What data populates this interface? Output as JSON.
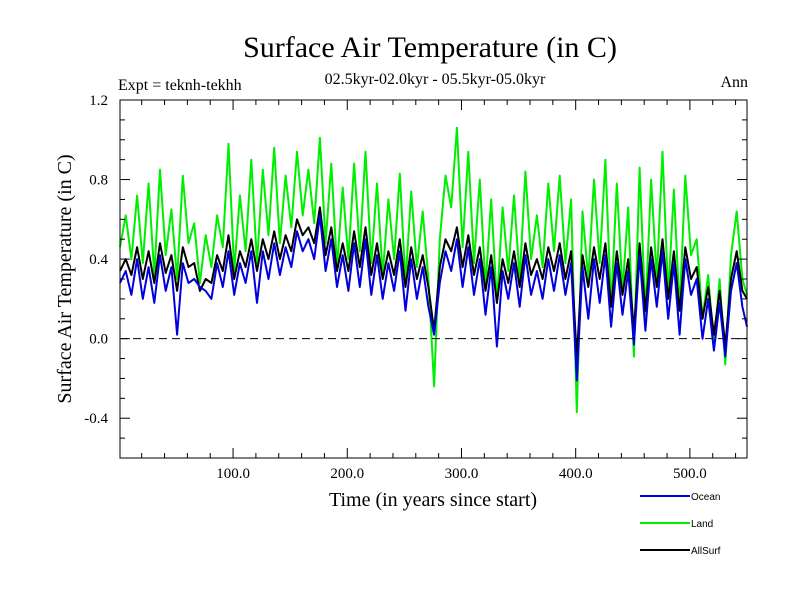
{
  "chart_data": {
    "type": "line",
    "title": "Surface Air Temperature (in C)",
    "subtitle": "02.5kyr-02.0kyr - 05.5kyr-05.0kyr",
    "left_label": "Expt = teknh-tekhh",
    "right_label": "Ann",
    "xlabel": "Time (in years since start)",
    "ylabel": "Surface Air Temperature (in C)",
    "xlim": [
      1,
      550
    ],
    "ylim": [
      -0.6,
      1.2
    ],
    "x_ticks": [
      {
        "value": 100,
        "label": "100.0"
      },
      {
        "value": 200,
        "label": "200.0"
      },
      {
        "value": 300,
        "label": "300.0"
      },
      {
        "value": 400,
        "label": "400.0"
      },
      {
        "value": 500,
        "label": "500.0"
      }
    ],
    "y_ticks": [
      {
        "value": 1.2,
        "label": "1.2"
      },
      {
        "value": 0.8,
        "label": "0.8"
      },
      {
        "value": 0.4,
        "label": "0.4"
      },
      {
        "value": 0.0,
        "label": "0.0"
      },
      {
        "value": -0.4,
        "label": "-0.4"
      }
    ],
    "zero_line": true,
    "legend_position": "bottom-right",
    "series": [
      {
        "name": "Land",
        "color": "#00ee00",
        "x": [
          1,
          6,
          11,
          16,
          21,
          26,
          31,
          36,
          41,
          46,
          51,
          56,
          61,
          66,
          71,
          76,
          81,
          86,
          91,
          96,
          101,
          106,
          111,
          116,
          121,
          126,
          131,
          136,
          141,
          146,
          151,
          156,
          161,
          166,
          171,
          176,
          181,
          186,
          191,
          196,
          201,
          206,
          211,
          216,
          221,
          226,
          231,
          236,
          241,
          246,
          251,
          256,
          261,
          266,
          271,
          276,
          281,
          286,
          291,
          296,
          301,
          306,
          311,
          316,
          321,
          326,
          331,
          336,
          341,
          346,
          351,
          356,
          361,
          366,
          371,
          376,
          381,
          386,
          391,
          396,
          401,
          406,
          411,
          416,
          421,
          426,
          431,
          436,
          441,
          446,
          451,
          456,
          461,
          466,
          471,
          476,
          481,
          486,
          491,
          496,
          501,
          506,
          511,
          516,
          521,
          526,
          531,
          536,
          541,
          546,
          550
        ],
        "values": [
          0.46,
          0.62,
          0.4,
          0.72,
          0.38,
          0.78,
          0.32,
          0.85,
          0.42,
          0.65,
          0.3,
          0.82,
          0.48,
          0.58,
          0.28,
          0.52,
          0.36,
          0.62,
          0.46,
          0.98,
          0.34,
          0.72,
          0.44,
          0.9,
          0.38,
          0.85,
          0.52,
          0.96,
          0.48,
          0.82,
          0.56,
          0.94,
          0.62,
          0.85,
          0.58,
          1.01,
          0.48,
          0.88,
          0.36,
          0.76,
          0.4,
          0.88,
          0.44,
          0.94,
          0.38,
          0.78,
          0.32,
          0.7,
          0.4,
          0.83,
          0.28,
          0.74,
          0.36,
          0.64,
          0.3,
          -0.24,
          0.5,
          0.82,
          0.66,
          1.06,
          0.46,
          0.94,
          0.38,
          0.8,
          0.26,
          0.7,
          0.18,
          0.66,
          0.34,
          0.72,
          0.3,
          0.84,
          0.4,
          0.62,
          0.36,
          0.78,
          0.44,
          0.82,
          0.38,
          0.7,
          -0.37,
          0.64,
          0.3,
          0.8,
          0.38,
          0.9,
          0.16,
          0.78,
          0.24,
          0.66,
          -0.09,
          0.86,
          0.12,
          0.8,
          0.3,
          0.94,
          0.22,
          0.75,
          0.14,
          0.82,
          0.42,
          0.5,
          0.1,
          0.32,
          -0.05,
          0.3,
          -0.13,
          0.42,
          0.64,
          0.3,
          0.22
        ]
      },
      {
        "name": "AllSurf",
        "color": "#000000",
        "x": [
          1,
          6,
          11,
          16,
          21,
          26,
          31,
          36,
          41,
          46,
          51,
          56,
          61,
          66,
          71,
          76,
          81,
          86,
          91,
          96,
          101,
          106,
          111,
          116,
          121,
          126,
          131,
          136,
          141,
          146,
          151,
          156,
          161,
          166,
          171,
          176,
          181,
          186,
          191,
          196,
          201,
          206,
          211,
          216,
          221,
          226,
          231,
          236,
          241,
          246,
          251,
          256,
          261,
          266,
          271,
          276,
          281,
          286,
          291,
          296,
          301,
          306,
          311,
          316,
          321,
          326,
          331,
          336,
          341,
          346,
          351,
          356,
          361,
          366,
          371,
          376,
          381,
          386,
          391,
          396,
          401,
          406,
          411,
          416,
          421,
          426,
          431,
          436,
          441,
          446,
          451,
          456,
          461,
          466,
          471,
          476,
          481,
          486,
          491,
          496,
          501,
          506,
          511,
          516,
          521,
          526,
          531,
          536,
          541,
          546,
          550
        ],
        "values": [
          0.34,
          0.4,
          0.32,
          0.46,
          0.3,
          0.44,
          0.28,
          0.48,
          0.33,
          0.42,
          0.24,
          0.46,
          0.36,
          0.38,
          0.24,
          0.3,
          0.28,
          0.42,
          0.34,
          0.52,
          0.3,
          0.44,
          0.36,
          0.5,
          0.34,
          0.5,
          0.4,
          0.54,
          0.4,
          0.52,
          0.44,
          0.6,
          0.52,
          0.56,
          0.48,
          0.66,
          0.42,
          0.56,
          0.34,
          0.48,
          0.34,
          0.54,
          0.36,
          0.56,
          0.32,
          0.48,
          0.3,
          0.44,
          0.32,
          0.5,
          0.26,
          0.46,
          0.3,
          0.42,
          0.26,
          0.04,
          0.36,
          0.5,
          0.44,
          0.56,
          0.36,
          0.52,
          0.32,
          0.46,
          0.24,
          0.42,
          0.18,
          0.4,
          0.28,
          0.44,
          0.26,
          0.48,
          0.32,
          0.4,
          0.3,
          0.46,
          0.34,
          0.48,
          0.3,
          0.44,
          -0.1,
          0.42,
          0.26,
          0.46,
          0.3,
          0.48,
          0.16,
          0.44,
          0.22,
          0.4,
          0.04,
          0.48,
          0.14,
          0.46,
          0.26,
          0.5,
          0.2,
          0.44,
          0.14,
          0.46,
          0.3,
          0.36,
          0.1,
          0.26,
          0.02,
          0.24,
          -0.04,
          0.3,
          0.44,
          0.24,
          0.2
        ]
      },
      {
        "name": "Ocean",
        "color": "#0000dd",
        "x": [
          1,
          6,
          11,
          16,
          21,
          26,
          31,
          36,
          41,
          46,
          51,
          56,
          61,
          66,
          71,
          76,
          81,
          86,
          91,
          96,
          101,
          106,
          111,
          116,
          121,
          126,
          131,
          136,
          141,
          146,
          151,
          156,
          161,
          166,
          171,
          176,
          181,
          186,
          191,
          196,
          201,
          206,
          211,
          216,
          221,
          226,
          231,
          236,
          241,
          246,
          251,
          256,
          261,
          266,
          271,
          276,
          281,
          286,
          291,
          296,
          301,
          306,
          311,
          316,
          321,
          326,
          331,
          336,
          341,
          346,
          351,
          356,
          361,
          366,
          371,
          376,
          381,
          386,
          391,
          396,
          401,
          406,
          411,
          416,
          421,
          426,
          431,
          436,
          441,
          446,
          451,
          456,
          461,
          466,
          471,
          476,
          481,
          486,
          491,
          496,
          501,
          506,
          511,
          516,
          521,
          526,
          531,
          536,
          541,
          546,
          550
        ],
        "values": [
          0.28,
          0.34,
          0.22,
          0.4,
          0.2,
          0.36,
          0.18,
          0.42,
          0.24,
          0.36,
          0.02,
          0.38,
          0.28,
          0.3,
          0.26,
          0.24,
          0.2,
          0.38,
          0.26,
          0.44,
          0.22,
          0.38,
          0.28,
          0.44,
          0.18,
          0.44,
          0.3,
          0.48,
          0.32,
          0.46,
          0.36,
          0.54,
          0.44,
          0.5,
          0.4,
          0.62,
          0.34,
          0.5,
          0.26,
          0.42,
          0.24,
          0.48,
          0.26,
          0.5,
          0.22,
          0.42,
          0.2,
          0.38,
          0.24,
          0.44,
          0.14,
          0.4,
          0.2,
          0.36,
          0.16,
          0.02,
          0.28,
          0.44,
          0.34,
          0.5,
          0.26,
          0.46,
          0.22,
          0.4,
          0.12,
          0.36,
          -0.04,
          0.34,
          0.2,
          0.38,
          0.16,
          0.42,
          0.22,
          0.34,
          0.2,
          0.4,
          0.24,
          0.42,
          0.22,
          0.38,
          -0.21,
          0.36,
          0.1,
          0.4,
          0.18,
          0.42,
          0.06,
          0.38,
          0.12,
          0.34,
          -0.03,
          0.42,
          0.04,
          0.4,
          0.16,
          0.44,
          0.1,
          0.38,
          0.02,
          0.4,
          0.22,
          0.3,
          0.0,
          0.2,
          -0.06,
          0.18,
          -0.09,
          0.24,
          0.38,
          0.16,
          0.06
        ]
      }
    ]
  }
}
